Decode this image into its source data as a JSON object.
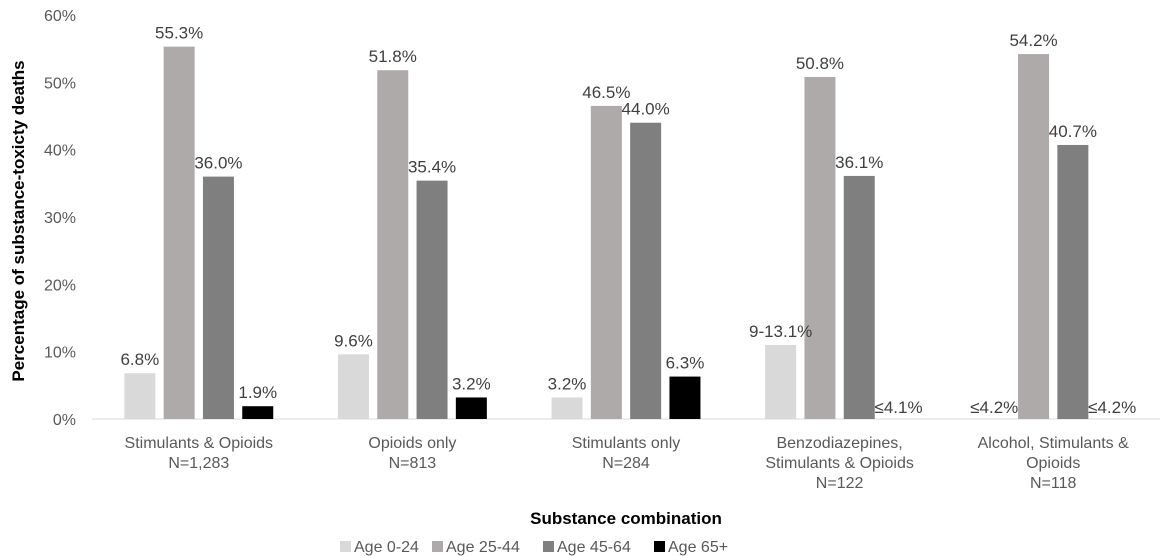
{
  "chart_data": {
    "type": "bar",
    "title": "",
    "xlabel": "Substance combination",
    "ylabel": "Percentage of substance-toxicty deaths",
    "ylim": [
      0,
      60
    ],
    "yticks": [
      "0%",
      "10%",
      "20%",
      "30%",
      "40%",
      "50%",
      "60%"
    ],
    "grid": false,
    "legend_position": "bottom",
    "categories": [
      [
        "Stimulants & Opioids",
        "N=1,283"
      ],
      [
        "Opioids only",
        "N=813"
      ],
      [
        "Stimulants only",
        "N=284"
      ],
      [
        "Benzodiazepines,",
        "Stimulants & Opioids",
        "N=122"
      ],
      [
        "Alcohol, Stimulants &",
        "Opioids",
        "N=118"
      ]
    ],
    "series": [
      {
        "name": "Age 0-24",
        "color": "#d9d9d9",
        "values": [
          6.8,
          9.6,
          3.2,
          11.0,
          null
        ],
        "labels": [
          "6.8%",
          "9.6%",
          "3.2%",
          "9-13.1%",
          "≤4.2%"
        ]
      },
      {
        "name": "Age 25-44",
        "color": "#aeaaaa",
        "values": [
          55.3,
          51.8,
          46.5,
          50.8,
          54.2
        ],
        "labels": [
          "55.3%",
          "51.8%",
          "46.5%",
          "50.8%",
          "54.2%"
        ]
      },
      {
        "name": "Age 45-64",
        "color": "#7f7f7f",
        "values": [
          36.0,
          35.4,
          44.0,
          36.1,
          40.7
        ],
        "labels": [
          "36.0%",
          "35.4%",
          "44.0%",
          "36.1%",
          "40.7%"
        ]
      },
      {
        "name": "Age 65+",
        "color": "#000000",
        "values": [
          1.9,
          3.2,
          6.3,
          null,
          null
        ],
        "labels": [
          "1.9%",
          "3.2%",
          "6.3%",
          "≤4.1%",
          "≤4.2%"
        ]
      }
    ]
  }
}
